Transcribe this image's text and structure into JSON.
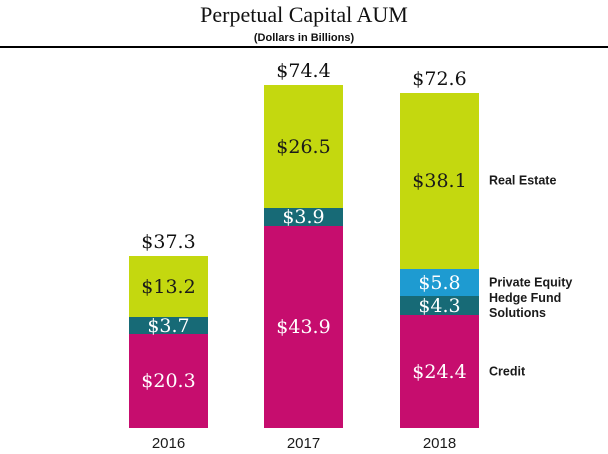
{
  "chart_data": {
    "type": "bar",
    "stacked": true,
    "title": "Perpetual Capital AUM",
    "subtitle": "(Dollars in Billions)",
    "value_prefix": "$",
    "grid": false,
    "legend_position": "right-of-last-bar",
    "categories": [
      "2016",
      "2017",
      "2018"
    ],
    "series": [
      {
        "name": "Credit",
        "color": "#c60d6e",
        "label_color": "#ffffff",
        "values": [
          20.3,
          43.9,
          24.4
        ]
      },
      {
        "name": "Hedge Fund Solutions",
        "color": "#176a76",
        "label_color": "#ffffff",
        "values": [
          3.7,
          3.9,
          4.3
        ]
      },
      {
        "name": "Private Equity",
        "color": "#1e9bd1",
        "label_color": "#ffffff",
        "values": [
          null,
          null,
          5.8
        ]
      },
      {
        "name": "Real Estate",
        "color": "#c4d80f",
        "label_color": "#1a1a1a",
        "values": [
          13.2,
          26.5,
          38.1
        ]
      }
    ],
    "totals": [
      37.3,
      74.4,
      72.6
    ]
  }
}
